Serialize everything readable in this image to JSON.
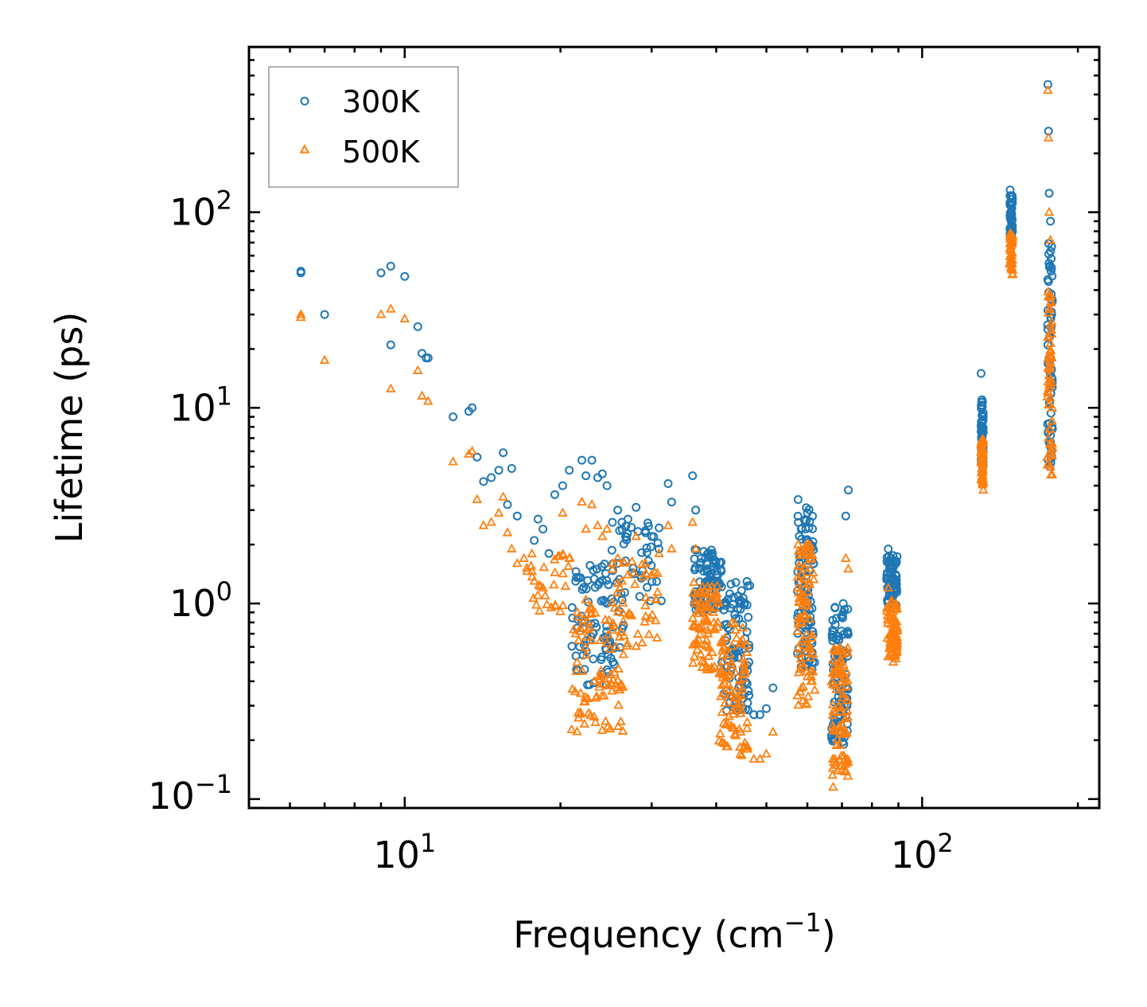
{
  "chart_data": {
    "type": "scatter",
    "title": "",
    "xlabel": "Frequency (cm",
    "xlabel_sup": "−1",
    "xlabel_suffix": ")",
    "ylabel": "Lifetime (ps)",
    "xscale": "log",
    "yscale": "log",
    "xlim": [
      5.0,
      220.0
    ],
    "ylim": [
      0.09,
      700.0
    ],
    "x_ticks": [
      {
        "value": 10,
        "base": "10",
        "exp": "1"
      },
      {
        "value": 100,
        "base": "10",
        "exp": "2"
      }
    ],
    "y_ticks": [
      {
        "value": 0.1,
        "base": "10",
        "exp": "−1"
      },
      {
        "value": 1,
        "base": "10",
        "exp": "0"
      },
      {
        "value": 10,
        "base": "10",
        "exp": "1"
      },
      {
        "value": 100,
        "base": "10",
        "exp": "2"
      }
    ],
    "legend_position": "top-left",
    "colors": {
      "s300": "#1f77b4",
      "s500": "#ff7f0e"
    },
    "series": [
      {
        "name": "300K",
        "marker": "circle",
        "color": "#1f77b4",
        "x": [
          6.3,
          6.3,
          7.0,
          9.0,
          9.4,
          9.4,
          10.0,
          10.6,
          10.8,
          11.0,
          11.1,
          12.4,
          13.3,
          13.5,
          13.8,
          14.2,
          14.7,
          15.2,
          15.5,
          15.8,
          16.1,
          16.5,
          17.8,
          18.1,
          18.5,
          19.0,
          19.5,
          20.2,
          20.8,
          21.4,
          22.0,
          22.4,
          23.0,
          23.6,
          24.1,
          24.6,
          25.2,
          25.8,
          26.3,
          27.0,
          28.0,
          29.2,
          30.0,
          31.0,
          32.3,
          32.8,
          36.0,
          36.5,
          37.4,
          38.3,
          39.5,
          40.3,
          41.4,
          42.1,
          43.4,
          44.6,
          46.0,
          47.3,
          48.6,
          50.0,
          51.5,
          57.6,
          58.4,
          59.3,
          60.3,
          61.0,
          62.0,
          67.3,
          68.2,
          69.0,
          70.4,
          71.2,
          72.0,
          86.0,
          87.0,
          88.0,
          89.0,
          130.0,
          130.5,
          131.0,
          131.3,
          148.0,
          148.5,
          149.0,
          149.5,
          175.0,
          175.5,
          176.0,
          177.0,
          177.5,
          178.0,
          178.5
        ],
        "y": [
          49.0,
          50.0,
          30.0,
          49.0,
          21.0,
          53.0,
          47.0,
          26.0,
          19.0,
          18.0,
          18.0,
          9.0,
          9.6,
          10.0,
          5.6,
          4.2,
          4.4,
          4.8,
          5.9,
          3.2,
          4.9,
          2.8,
          2.1,
          2.7,
          2.4,
          1.8,
          3.6,
          4.0,
          4.8,
          1.3,
          5.4,
          4.5,
          5.4,
          4.4,
          4.6,
          4.0,
          2.6,
          3.0,
          2.6,
          2.7,
          3.1,
          2.3,
          2.2,
          1.9,
          4.1,
          3.3,
          4.5,
          3.0,
          1.7,
          1.6,
          1.6,
          1.4,
          1.0,
          0.75,
          0.55,
          0.38,
          0.31,
          0.27,
          0.27,
          0.29,
          0.37,
          3.4,
          2.4,
          1.7,
          1.1,
          0.8,
          0.5,
          0.24,
          0.42,
          0.68,
          1.0,
          2.8,
          3.8,
          1.9,
          1.4,
          1.1,
          1.6,
          15.0,
          11.0,
          9.0,
          7.5,
          130.0,
          120.0,
          95.0,
          80.0,
          450.0,
          260.0,
          125.0,
          90.0,
          50.0,
          30.0,
          14.0
        ],
        "bands": [
          {
            "x_min": 21.0,
            "x_max": 26.5,
            "y_min": 0.38,
            "y_max": 1.6,
            "n": 90
          },
          {
            "x_min": 25.0,
            "x_max": 31.5,
            "y_min": 1.0,
            "y_max": 2.6,
            "n": 40
          },
          {
            "x_min": 36.2,
            "x_max": 41.0,
            "y_min": 0.9,
            "y_max": 1.9,
            "n": 80
          },
          {
            "x_min": 41.0,
            "x_max": 46.5,
            "y_min": 0.28,
            "y_max": 1.3,
            "n": 90
          },
          {
            "x_min": 57.4,
            "x_max": 61.8,
            "y_min": 0.45,
            "y_max": 3.3,
            "n": 90
          },
          {
            "x_min": 66.8,
            "x_max": 72.0,
            "y_min": 0.19,
            "y_max": 1.0,
            "n": 90
          },
          {
            "x_min": 85.4,
            "x_max": 89.6,
            "y_min": 0.95,
            "y_max": 1.8,
            "n": 70
          },
          {
            "x_min": 130.0,
            "x_max": 131.3,
            "y_min": 5.0,
            "y_max": 11.0,
            "n": 50
          },
          {
            "x_min": 147.8,
            "x_max": 149.6,
            "y_min": 75.0,
            "y_max": 125.0,
            "n": 40
          },
          {
            "x_min": 174.5,
            "x_max": 178.6,
            "y_min": 5.0,
            "y_max": 70.0,
            "n": 60
          }
        ]
      },
      {
        "name": "500K",
        "marker": "triangle",
        "color": "#ff7f0e",
        "x": [
          6.3,
          6.3,
          7.0,
          9.0,
          9.4,
          9.4,
          10.0,
          10.6,
          10.8,
          11.1,
          12.4,
          13.3,
          13.5,
          13.8,
          14.2,
          14.7,
          15.2,
          15.5,
          15.8,
          16.1,
          16.5,
          17.0,
          17.8,
          18.5,
          19.2,
          20.2,
          20.8,
          21.4,
          22.0,
          22.4,
          23.0,
          23.6,
          24.1,
          24.6,
          25.2,
          25.8,
          26.3,
          27.0,
          28.0,
          29.2,
          30.0,
          31.0,
          32.3,
          32.8,
          36.0,
          36.5,
          37.4,
          38.3,
          39.5,
          40.3,
          41.4,
          42.1,
          43.4,
          44.6,
          46.0,
          47.3,
          48.6,
          50.0,
          51.5,
          57.6,
          58.4,
          59.3,
          60.3,
          61.0,
          62.0,
          67.3,
          67.8,
          69.0,
          70.4,
          71.2,
          72.0,
          86.0,
          87.0,
          88.0,
          89.0,
          130.0,
          130.5,
          131.0,
          131.3,
          148.0,
          148.5,
          149.0,
          149.5,
          175.0,
          175.5,
          176.0,
          177.0,
          177.5,
          178.0,
          178.5
        ],
        "y": [
          29.0,
          30.0,
          17.5,
          30.0,
          12.5,
          32.0,
          28.5,
          15.5,
          11.5,
          10.8,
          5.3,
          5.8,
          6.0,
          3.4,
          2.5,
          2.6,
          2.9,
          3.5,
          2.3,
          1.9,
          1.6,
          1.7,
          1.3,
          1.2,
          0.95,
          2.9,
          1.7,
          0.7,
          3.3,
          2.4,
          3.2,
          2.5,
          2.2,
          2.4,
          1.6,
          1.7,
          1.3,
          1.4,
          2.2,
          1.6,
          1.4,
          1.8,
          2.5,
          1.9,
          2.6,
          1.9,
          1.0,
          0.95,
          0.9,
          0.8,
          0.6,
          0.45,
          0.33,
          0.22,
          0.18,
          0.16,
          0.16,
          0.17,
          0.22,
          2.0,
          1.4,
          0.85,
          0.6,
          0.45,
          0.36,
          0.115,
          0.16,
          0.3,
          0.55,
          1.7,
          1.5,
          1.2,
          0.85,
          0.7,
          1.0,
          6.5,
          5.5,
          4.5,
          3.8,
          78.0,
          75.0,
          60.0,
          48.0,
          420.0,
          240.0,
          100.0,
          72.0,
          35.0,
          18.0,
          10.0
        ],
        "bands": [
          {
            "x_min": 21.0,
            "x_max": 26.5,
            "y_min": 0.22,
            "y_max": 1.1,
            "n": 90
          },
          {
            "x_min": 17.0,
            "x_max": 21.0,
            "y_min": 0.9,
            "y_max": 1.8,
            "n": 30
          },
          {
            "x_min": 25.0,
            "x_max": 31.0,
            "y_min": 0.6,
            "y_max": 1.7,
            "n": 40
          },
          {
            "x_min": 36.0,
            "x_max": 40.5,
            "y_min": 0.45,
            "y_max": 1.3,
            "n": 80
          },
          {
            "x_min": 40.5,
            "x_max": 46.0,
            "y_min": 0.16,
            "y_max": 0.8,
            "n": 90
          },
          {
            "x_min": 57.4,
            "x_max": 61.8,
            "y_min": 0.3,
            "y_max": 2.0,
            "n": 90
          },
          {
            "x_min": 66.8,
            "x_max": 72.0,
            "y_min": 0.13,
            "y_max": 0.6,
            "n": 90
          },
          {
            "x_min": 85.4,
            "x_max": 89.6,
            "y_min": 0.5,
            "y_max": 1.05,
            "n": 70
          },
          {
            "x_min": 130.0,
            "x_max": 131.3,
            "y_min": 4.0,
            "y_max": 7.0,
            "n": 50
          },
          {
            "x_min": 147.8,
            "x_max": 149.6,
            "y_min": 48.0,
            "y_max": 78.0,
            "n": 40
          },
          {
            "x_min": 174.5,
            "x_max": 178.6,
            "y_min": 4.5,
            "y_max": 40.0,
            "n": 60
          }
        ]
      }
    ]
  }
}
